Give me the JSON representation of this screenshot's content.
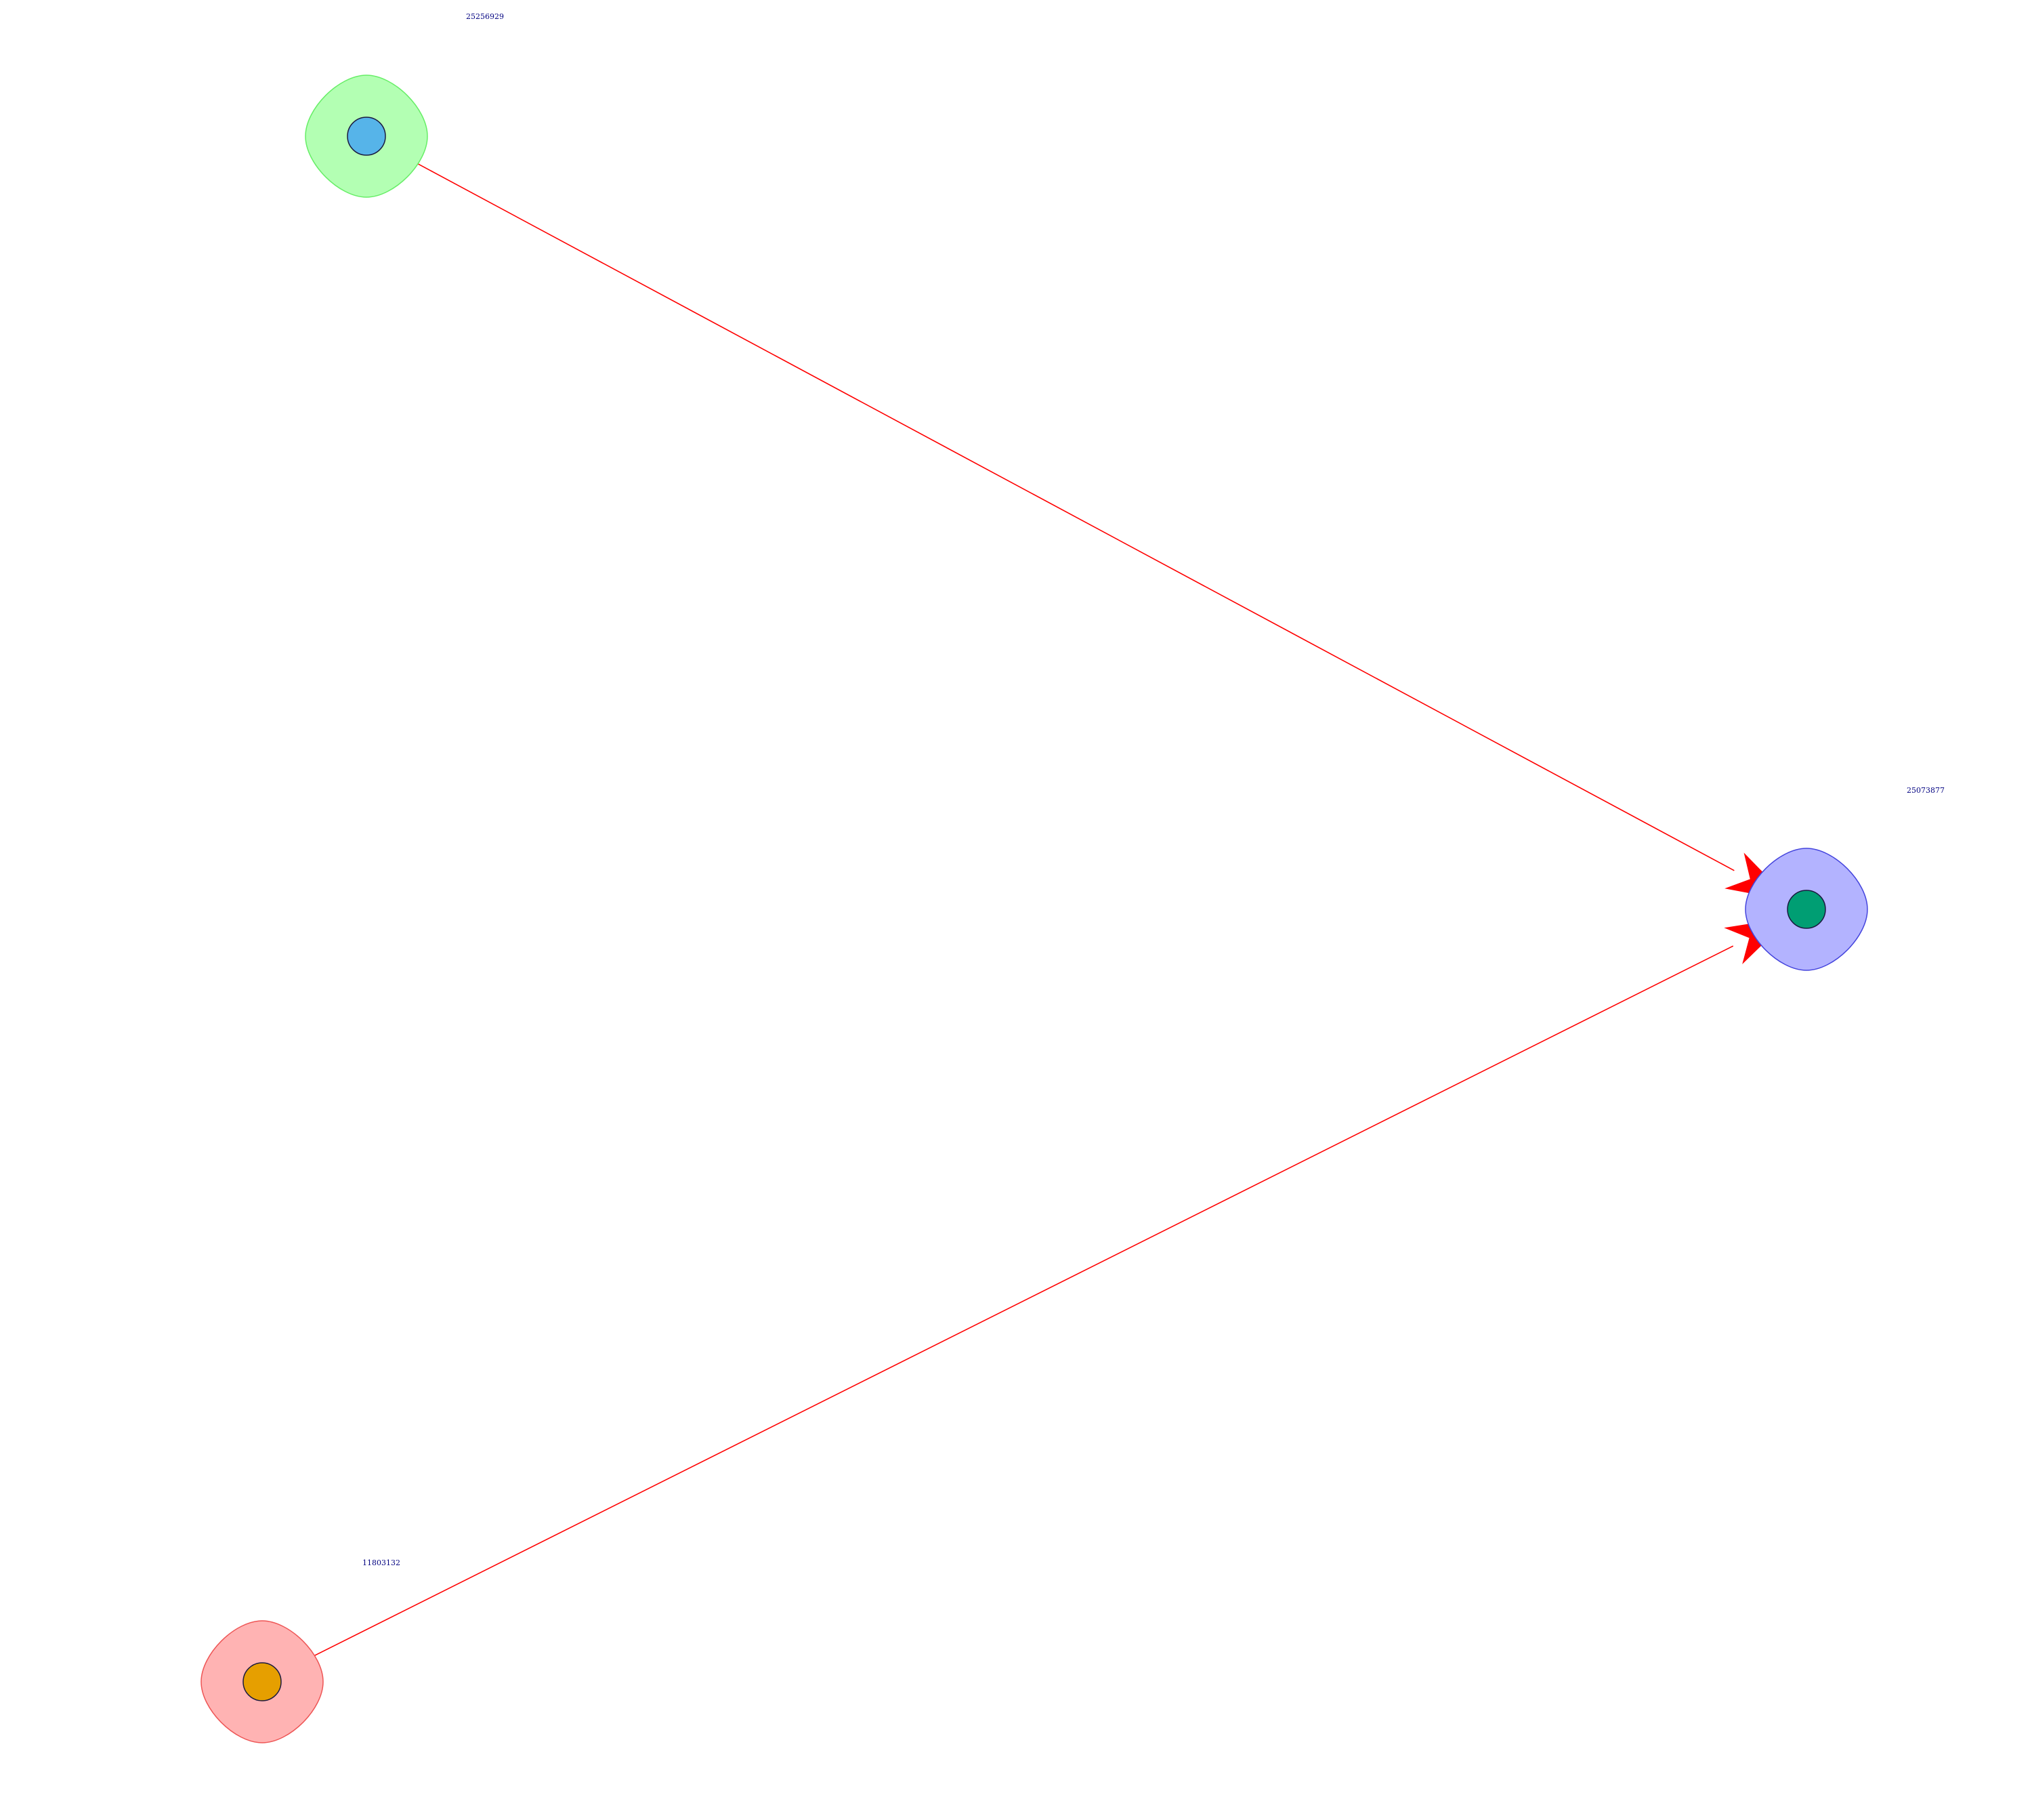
{
  "graph": {
    "edge_color": "#ff0000",
    "label_color": "#000080",
    "nodes": [
      {
        "id": "25256929",
        "label": "25256929",
        "halo_fill": "#b3ffb3",
        "halo_stroke": "#66ee66",
        "node_fill": "#56b4e9"
      },
      {
        "id": "25073877",
        "label": "25073877",
        "halo_fill": "#b3b3ff",
        "halo_stroke": "#4444dd",
        "node_fill": "#009e73"
      },
      {
        "id": "11803132",
        "label": "11803132",
        "halo_fill": "#ffb3b3",
        "halo_stroke": "#ee5555",
        "node_fill": "#e69f00"
      }
    ],
    "edges": [
      {
        "source": "25256929",
        "target": "25073877"
      },
      {
        "source": "11803132",
        "target": "25073877"
      }
    ]
  }
}
